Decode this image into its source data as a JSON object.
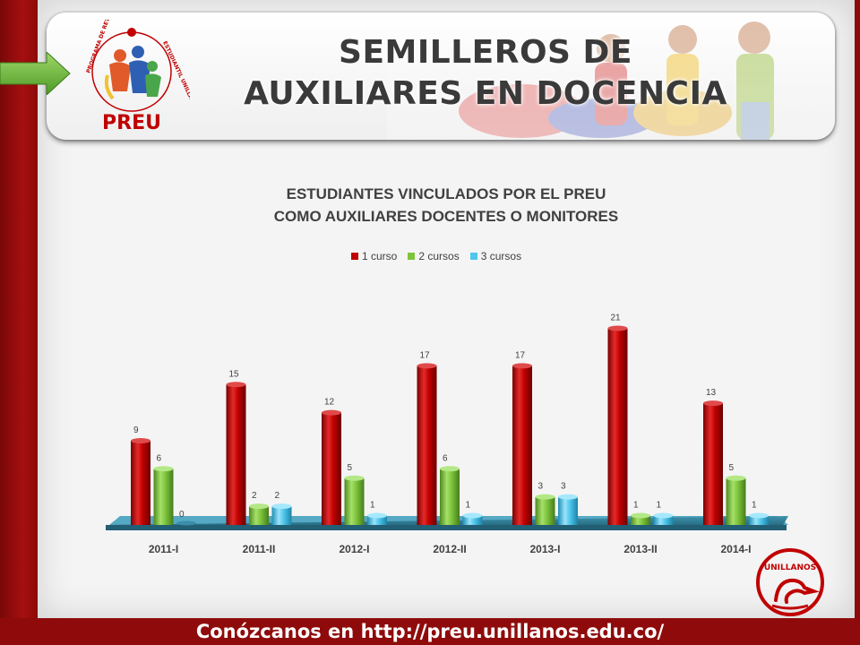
{
  "slide": {
    "title_line1": "SEMILLEROS DE",
    "title_line2": "AUXILIARES EN DOCENCIA",
    "logo_text": "PREU",
    "logo_ring_text": "PROGRAMA DE RETENCIÓN ESTUDIANTIL UNILLANISTA",
    "footer": "Conózcanos en http://preu.unillanos.edu.co/",
    "seal_text": "UNILLANOS"
  },
  "colors": {
    "series1": "#c00000",
    "series2": "#7dc43b",
    "series3": "#4fc6ec",
    "floor": "#2e7b95",
    "accent_red": "#8f0b0b"
  },
  "chart_data": {
    "type": "bar",
    "title_line1": "ESTUDIANTES VINCULADOS POR EL PREU",
    "title_line2": "COMO AUXILIARES DOCENTES O MONITORES",
    "categories": [
      "2011-I",
      "2011-II",
      "2012-I",
      "2012-II",
      "2013-I",
      "2013-II",
      "2014-I"
    ],
    "series": [
      {
        "name": "1 curso",
        "values": [
          9,
          15,
          12,
          17,
          17,
          21,
          13
        ]
      },
      {
        "name": "2 cursos",
        "values": [
          6,
          2,
          5,
          6,
          3,
          1,
          5
        ]
      },
      {
        "name": "3 cursos",
        "values": [
          0,
          2,
          1,
          1,
          3,
          1,
          1
        ]
      }
    ],
    "legend_position": "top",
    "style": "3d-cylinder",
    "grid": false
  }
}
